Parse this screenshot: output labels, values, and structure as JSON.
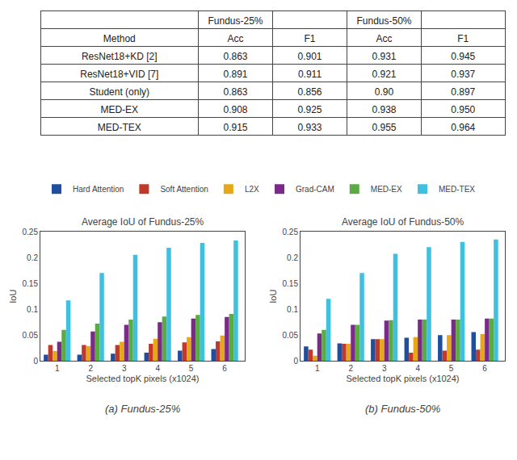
{
  "chart_data": [
    {
      "type": "table",
      "xlabel": "Method",
      "categories": [
        "ResNet18+KD [2]",
        "ResNet18+VID [7]",
        "Student (only)",
        "MED-EX",
        "MED-TEX"
      ],
      "series": [
        {
          "name": "Acc",
          "group": "Fundus-25%",
          "values": [
            0.863,
            0.891,
            0.863,
            0.908,
            0.915
          ],
          "value_labels": [
            "0.863",
            "0.891",
            "0.863",
            "0.908",
            "0.915"
          ]
        },
        {
          "name": "F1",
          "group": "Fundus-25%",
          "values": [
            0.901,
            0.911,
            0.856,
            0.925,
            0.933
          ],
          "value_labels": [
            "0.901",
            "0.911",
            "0.856",
            "0.925",
            "0.933"
          ]
        },
        {
          "name": "Acc",
          "group": "Fundus-50%",
          "values": [
            0.931,
            0.921,
            0.9,
            0.938,
            0.955
          ],
          "value_labels": [
            "0.931",
            "0.921",
            "0.90",
            "0.938",
            "0.955"
          ]
        },
        {
          "name": "F1",
          "group": "Fundus-50%",
          "values": [
            0.945,
            0.937,
            0.897,
            0.95,
            0.964
          ],
          "value_labels": [
            "0.945",
            "0.937",
            "0.897",
            "0.950",
            "0.964"
          ]
        }
      ]
    },
    {
      "type": "bar",
      "title": "Average IoU of Fundus-25%",
      "xlabel": "Selected topK pixels (x1024)",
      "ylabel": "IoU",
      "x": [
        1,
        2,
        3,
        4,
        5,
        6
      ],
      "xlim": [
        0.5,
        6.6
      ],
      "xticks": [
        1,
        2,
        3,
        4,
        5,
        6
      ],
      "ylim": [
        0,
        0.25
      ],
      "yticks": [
        0,
        0.05,
        0.1,
        0.15,
        0.2,
        0.25
      ],
      "grid": false,
      "legend": "top",
      "annotations": [
        {
          "text": "(a) Fundus-25%"
        }
      ],
      "series": [
        {
          "name": "Hard Attention",
          "color": "#1f4e9c",
          "values": [
            0.012,
            0.012,
            0.014,
            0.016,
            0.02,
            0.023
          ]
        },
        {
          "name": "Soft Attention",
          "color": "#c0392b",
          "values": [
            0.031,
            0.031,
            0.031,
            0.033,
            0.036,
            0.038
          ]
        },
        {
          "name": "L2X",
          "color": "#e6a817",
          "values": [
            0.019,
            0.029,
            0.037,
            0.043,
            0.046,
            0.049
          ]
        },
        {
          "name": "Grad-CAM",
          "color": "#7b2a8a",
          "values": [
            0.037,
            0.057,
            0.07,
            0.075,
            0.082,
            0.085
          ]
        },
        {
          "name": "MED-EX",
          "color": "#5aab44",
          "values": [
            0.06,
            0.072,
            0.08,
            0.086,
            0.089,
            0.091
          ]
        },
        {
          "name": "MED-TEX",
          "color": "#40c0e0",
          "values": [
            0.117,
            0.17,
            0.205,
            0.219,
            0.228,
            0.233
          ]
        }
      ]
    },
    {
      "type": "bar",
      "title": "Average IoU of Fundus-50%",
      "xlabel": "Selected topK pixels (x1024)",
      "ylabel": "IoU",
      "x": [
        1,
        2,
        3,
        4,
        5,
        6
      ],
      "xlim": [
        0.5,
        6.6
      ],
      "xticks": [
        1,
        2,
        3,
        4,
        5,
        6
      ],
      "ylim": [
        0,
        0.25
      ],
      "yticks": [
        0,
        0.05,
        0.1,
        0.15,
        0.2,
        0.25
      ],
      "grid": false,
      "annotations": [
        {
          "text": "(b) Fundus-50%"
        }
      ],
      "series": [
        {
          "name": "Hard Attention",
          "color": "#1f4e9c",
          "values": [
            0.028,
            0.034,
            0.042,
            0.045,
            0.05,
            0.056
          ]
        },
        {
          "name": "Soft Attention",
          "color": "#c0392b",
          "values": [
            0.022,
            0.033,
            0.042,
            0.016,
            0.02,
            0.022
          ]
        },
        {
          "name": "L2X",
          "color": "#e6a817",
          "values": [
            0.01,
            0.033,
            0.042,
            0.046,
            0.05,
            0.052
          ]
        },
        {
          "name": "Grad-CAM",
          "color": "#7b2a8a",
          "values": [
            0.053,
            0.07,
            0.078,
            0.08,
            0.08,
            0.082
          ]
        },
        {
          "name": "MED-EX",
          "color": "#5aab44",
          "values": [
            0.06,
            0.07,
            0.079,
            0.08,
            0.08,
            0.082
          ]
        },
        {
          "name": "MED-TEX",
          "color": "#40c0e0",
          "values": [
            0.12,
            0.17,
            0.207,
            0.22,
            0.23,
            0.235
          ]
        }
      ]
    }
  ]
}
